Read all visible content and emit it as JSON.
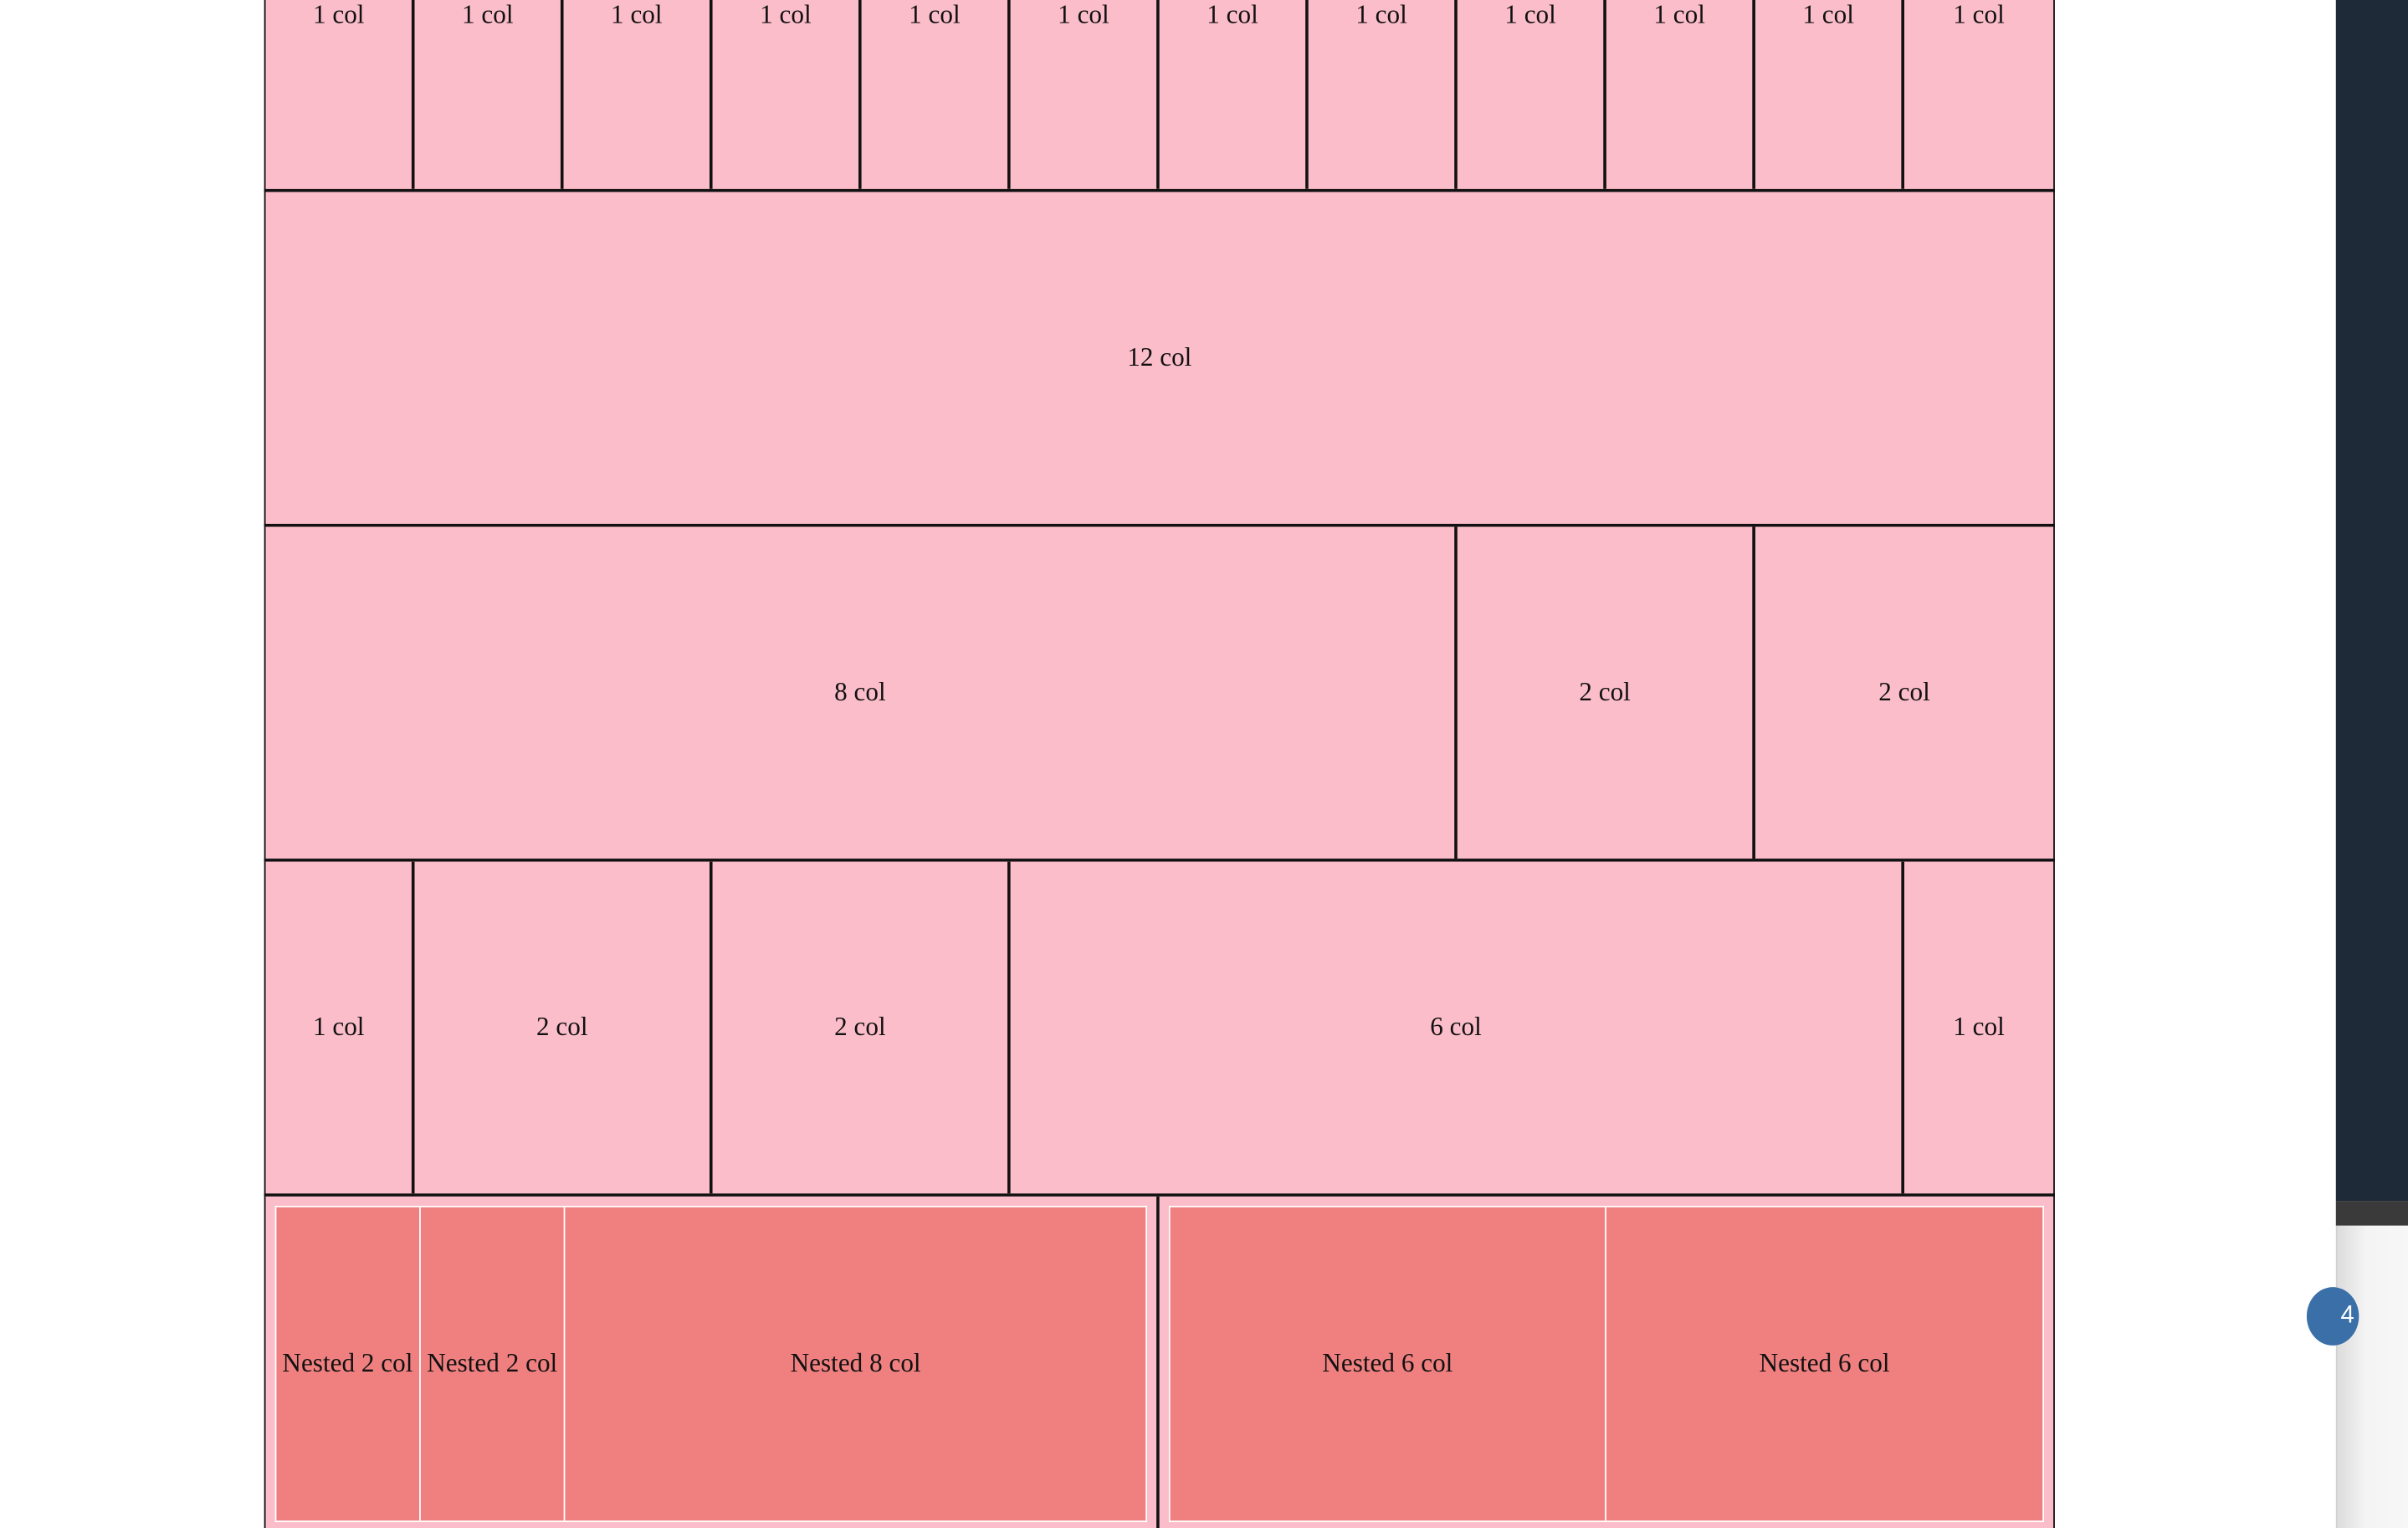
{
  "grid": {
    "row1": [
      "1 col",
      "1 col",
      "1 col",
      "1 col",
      "1 col",
      "1 col",
      "1 col",
      "1 col",
      "1 col",
      "1 col",
      "1 col",
      "1 col"
    ],
    "row2": [
      "12 col"
    ],
    "row3": [
      "8 col",
      "2 col",
      "2 col"
    ],
    "row4": [
      "1 col",
      "2 col",
      "2 col",
      "6 col",
      "1 col"
    ],
    "nested_left": [
      "Nested 2 col",
      "Nested 2 col",
      "Nested 8 col"
    ],
    "nested_right": [
      "Nested 6 col",
      "Nested 6 col"
    ]
  },
  "side_badge": {
    "value": "4"
  },
  "colors": {
    "cell_bg": "#fcbdca",
    "nested_bg": "#f08080",
    "border": "#111111",
    "side_panel": "#1f2a38",
    "badge": "#3b6fa8"
  }
}
